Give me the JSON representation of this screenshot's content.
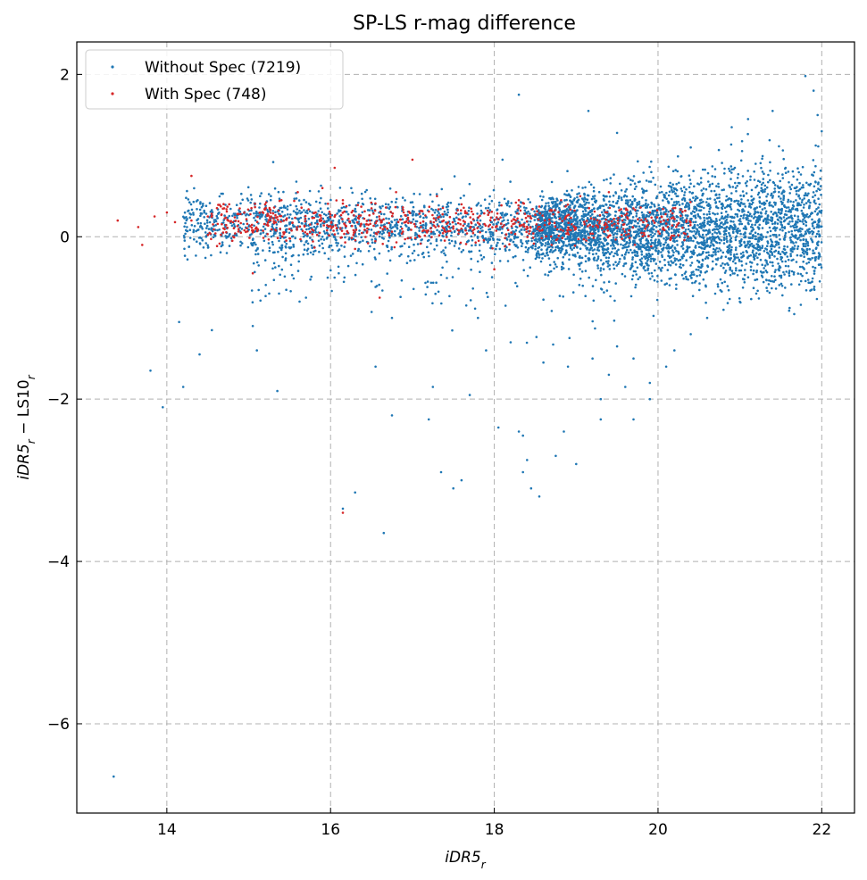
{
  "chart_data": {
    "type": "scatter",
    "title": "SP-LS r-mag difference",
    "xlabel": "iDR5",
    "xlabel_sub": "r",
    "ylabel_parts": [
      "iDR5",
      "r",
      " − LS10",
      "r"
    ],
    "xlim": [
      12.9,
      22.4
    ],
    "ylim": [
      -7.1,
      2.4
    ],
    "x_ticks": [
      14,
      16,
      18,
      20,
      22
    ],
    "y_ticks": [
      2,
      0,
      -2,
      -4,
      -6
    ],
    "y_tick_labels": [
      "2",
      "0",
      "−2",
      "−4",
      "−6"
    ],
    "grid": true,
    "legend_position": "top-left",
    "series": [
      {
        "name": "Without Spec (7219)",
        "color": "#1f77b4",
        "points": [
          [
            13.35,
            -6.65
          ],
          [
            13.8,
            -1.65
          ],
          [
            13.95,
            -2.1
          ],
          [
            14.15,
            -1.05
          ],
          [
            14.2,
            -1.85
          ],
          [
            14.4,
            -1.45
          ],
          [
            14.55,
            -1.15
          ],
          [
            15.05,
            -1.1
          ],
          [
            15.1,
            -1.4
          ],
          [
            15.35,
            -1.9
          ],
          [
            15.25,
            -0.7
          ],
          [
            15.7,
            -0.75
          ],
          [
            16.1,
            -0.45
          ],
          [
            16.3,
            -3.15
          ],
          [
            16.15,
            -3.35
          ],
          [
            16.65,
            -3.65
          ],
          [
            16.5,
            -0.55
          ],
          [
            16.55,
            -1.6
          ],
          [
            16.75,
            -1.0
          ],
          [
            16.75,
            -2.2
          ],
          [
            17.2,
            -2.25
          ],
          [
            17.25,
            -1.85
          ],
          [
            17.35,
            -2.9
          ],
          [
            17.5,
            -3.1
          ],
          [
            17.6,
            -3.0
          ],
          [
            17.7,
            -1.95
          ],
          [
            17.9,
            -1.4
          ],
          [
            18.05,
            -2.35
          ],
          [
            18.3,
            -2.4
          ],
          [
            18.35,
            -2.45
          ],
          [
            18.35,
            -2.9
          ],
          [
            18.4,
            -2.75
          ],
          [
            18.45,
            -3.1
          ],
          [
            18.55,
            -3.2
          ],
          [
            18.75,
            -2.7
          ],
          [
            18.85,
            -2.4
          ],
          [
            19.0,
            -2.8
          ],
          [
            19.3,
            -2.25
          ],
          [
            19.3,
            -2.0
          ],
          [
            19.7,
            -2.25
          ],
          [
            19.6,
            -1.85
          ],
          [
            19.9,
            -2.0
          ],
          [
            18.3,
            1.75
          ],
          [
            19.15,
            1.55
          ],
          [
            15.3,
            0.92
          ],
          [
            18.1,
            0.95
          ],
          [
            19.5,
            1.28
          ],
          [
            21.8,
            1.98
          ],
          [
            21.9,
            1.8
          ],
          [
            21.95,
            1.5
          ],
          [
            22.0,
            1.3
          ],
          [
            20.4,
            1.1
          ],
          [
            20.9,
            1.35
          ],
          [
            21.1,
            1.45
          ],
          [
            21.4,
            1.55
          ],
          [
            17.8,
            -1.0
          ],
          [
            18.2,
            -1.3
          ],
          [
            18.6,
            -1.55
          ],
          [
            18.9,
            -1.6
          ],
          [
            19.2,
            -1.5
          ],
          [
            19.4,
            -1.7
          ],
          [
            19.5,
            -1.35
          ],
          [
            19.7,
            -1.5
          ],
          [
            19.9,
            -1.8
          ],
          [
            20.1,
            -1.6
          ],
          [
            20.2,
            -1.4
          ],
          [
            20.4,
            -1.2
          ],
          [
            20.6,
            -1.0
          ],
          [
            20.8,
            -0.9
          ],
          [
            21.0,
            -0.8
          ],
          [
            21.2,
            -0.7
          ],
          [
            21.4,
            -0.55
          ],
          [
            21.6,
            -0.45
          ]
        ]
      },
      {
        "name": "With Spec (748)",
        "color": "#d62728",
        "points": [
          [
            13.4,
            0.2
          ],
          [
            13.65,
            0.12
          ],
          [
            13.7,
            -0.1
          ],
          [
            13.85,
            0.25
          ],
          [
            14.0,
            0.3
          ],
          [
            14.1,
            0.18
          ],
          [
            14.3,
            0.75
          ],
          [
            14.3,
            0.2
          ],
          [
            14.5,
            0.25
          ],
          [
            14.7,
            0.35
          ],
          [
            14.8,
            -0.05
          ],
          [
            14.9,
            0.28
          ],
          [
            15.05,
            -0.45
          ],
          [
            15.2,
            0.4
          ],
          [
            15.4,
            0.45
          ],
          [
            15.6,
            0.55
          ],
          [
            15.9,
            0.6
          ],
          [
            16.05,
            0.85
          ],
          [
            16.15,
            0.45
          ],
          [
            16.3,
            -0.15
          ],
          [
            16.5,
            0.35
          ],
          [
            16.6,
            -0.75
          ],
          [
            16.8,
            0.55
          ],
          [
            17.0,
            0.95
          ],
          [
            16.15,
            -3.4
          ],
          [
            17.3,
            0.5
          ],
          [
            17.6,
            0.4
          ],
          [
            18.0,
            -0.4
          ],
          [
            18.3,
            0.45
          ],
          [
            18.7,
            -0.1
          ],
          [
            19.05,
            0.5
          ],
          [
            19.4,
            0.55
          ],
          [
            19.7,
            0.35
          ],
          [
            19.9,
            0.3
          ]
        ]
      }
    ],
    "dense_band": [
      {
        "color": "#1f77b4",
        "x_from": 14.2,
        "x_to": 19.0,
        "n": 1400,
        "y_center": 0.15,
        "y_spread": 0.18
      },
      {
        "color": "#1f77b4",
        "x_from": 18.5,
        "x_to": 22.0,
        "n": 3200,
        "y_center": 0.1,
        "y_spread": 0.45
      },
      {
        "color": "#1f77b4",
        "x_from": 15.0,
        "x_to": 20.0,
        "n": 260,
        "y_center": -0.3,
        "y_spread": 0.55
      },
      {
        "color": "#d62728",
        "x_from": 14.5,
        "x_to": 20.4,
        "n": 700,
        "y_center": 0.17,
        "y_spread": 0.12
      }
    ]
  }
}
